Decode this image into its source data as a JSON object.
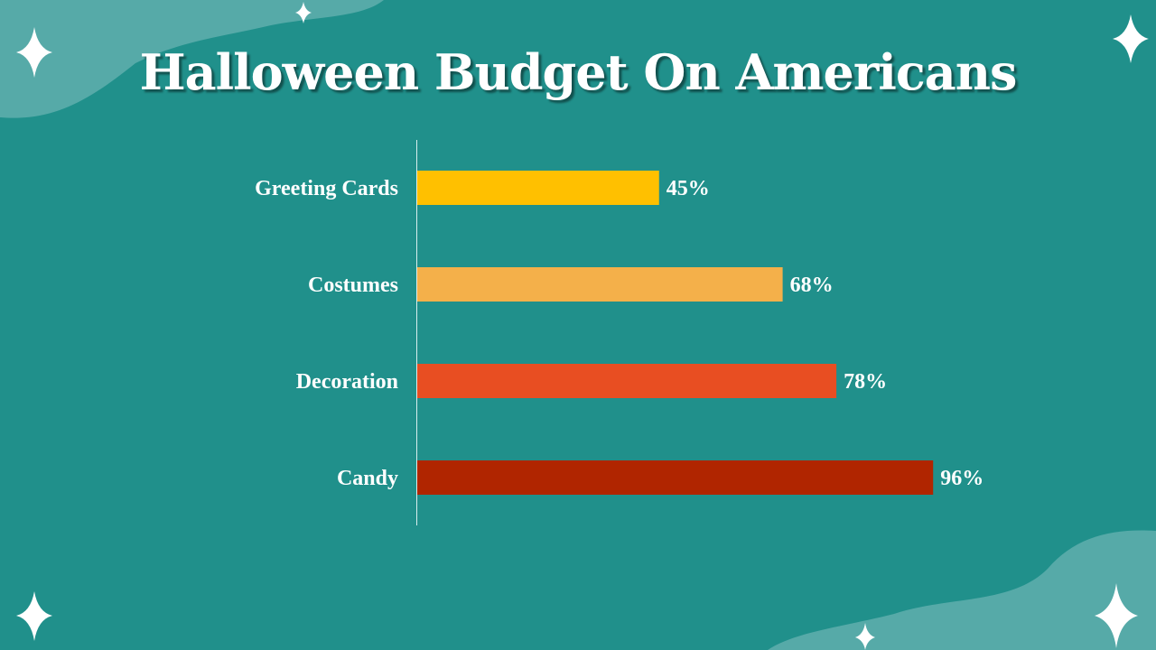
{
  "title": "Halloween Budget On Americans",
  "chart_data": {
    "type": "bar",
    "orientation": "horizontal",
    "title": "Halloween Budget On Americans",
    "categories": [
      "Greeting Cards",
      "Costumes",
      "Decoration",
      "Candy"
    ],
    "values": [
      45,
      68,
      78,
      96
    ],
    "value_labels": [
      "45%",
      "68%",
      "78%",
      "96%"
    ],
    "colors": [
      "#ffc000",
      "#f4b04a",
      "#e84e22",
      "#b02500"
    ],
    "xlim": [
      0,
      100
    ],
    "xlabel": "",
    "ylabel": "",
    "grid": false
  },
  "colors": {
    "background": "#20908b",
    "accent_blob": "#56aaa8"
  }
}
